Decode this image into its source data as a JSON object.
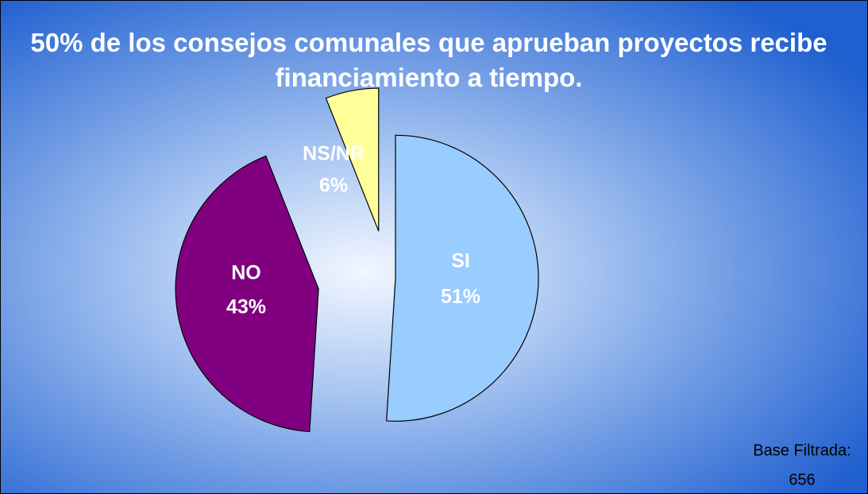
{
  "chart_data": {
    "type": "pie",
    "title": "50% de los consejos comunales que aprueban proyectos recibe financiamiento a tiempo.",
    "categories": [
      "SI",
      "NO",
      "NS/NR"
    ],
    "values": [
      51,
      43,
      6
    ],
    "value_labels": [
      "51%",
      "43%",
      "6%"
    ],
    "colors": [
      "#99ccff",
      "#800080",
      "#ffff99"
    ],
    "base": {
      "label": "Base Filtrada:",
      "value": 656
    }
  }
}
